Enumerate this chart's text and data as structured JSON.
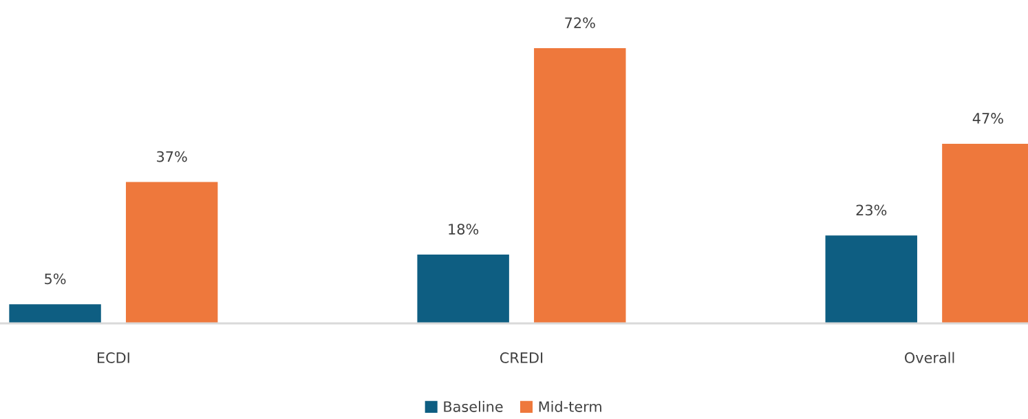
{
  "chart_data": {
    "type": "bar",
    "categories": [
      "ECDI",
      "CREDI",
      "Overall"
    ],
    "series": [
      {
        "name": "Baseline",
        "color": "#0e5e82",
        "values": [
          5,
          18,
          23
        ],
        "value_labels": [
          "5%",
          "18%",
          "23%"
        ]
      },
      {
        "name": "Mid-term",
        "color": "#ee783c",
        "values": [
          37,
          72,
          47
        ],
        "value_labels": [
          "37%",
          "72%",
          "47%"
        ]
      }
    ],
    "legend": "bottom",
    "grid": false
  }
}
